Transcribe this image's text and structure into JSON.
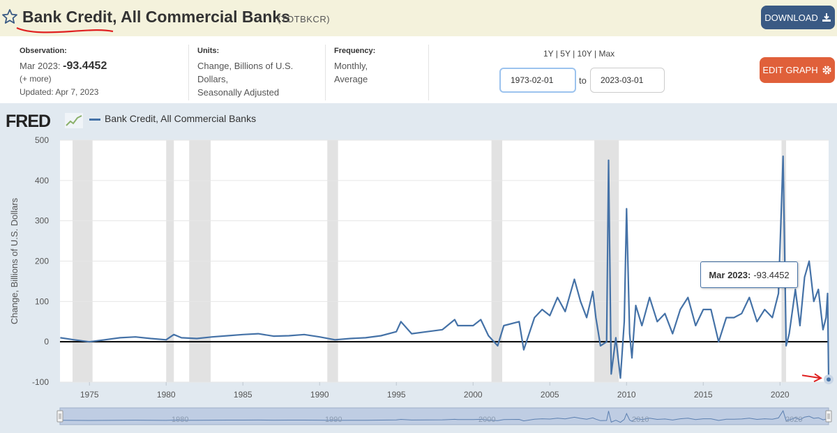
{
  "header": {
    "title": "Bank Credit, All Commercial Banks",
    "series_id": "(TOTBKCR)",
    "download_label": "DOWNLOAD"
  },
  "meta": {
    "observation_label": "Observation:",
    "observation_date": "Mar 2023:",
    "observation_value": "-93.4452",
    "more_link": "(+ more)",
    "updated": "Updated: Apr 7, 2023",
    "units_label": "Units:",
    "units_lines": [
      "Change, Billions of U.S.",
      "Dollars,",
      "Seasonally Adjusted"
    ],
    "frequency_label": "Frequency:",
    "frequency_lines": [
      "Monthly,",
      "Average"
    ]
  },
  "controls": {
    "range_links": [
      "1Y",
      "5Y",
      "10Y",
      "Max"
    ],
    "start_date": "1973-02-01",
    "end_date": "2023-03-01",
    "to_label": "to",
    "edit_label": "EDIT GRAPH"
  },
  "graph": {
    "logo_text": "FRED",
    "legend_label": "Bank Credit, All Commercial Banks",
    "tooltip_date": "Mar 2023:",
    "tooltip_value": "-93.4452",
    "navigator_labels": [
      "1980",
      "1990",
      "2000",
      "2010",
      "2020"
    ]
  },
  "colors": {
    "series": "#4572a7",
    "recession": "#e2e2e2",
    "edit_button": "#e0603a",
    "download_button": "#3a5a84",
    "title_bar": "#f4f2dc"
  },
  "icons": [
    "star-icon",
    "download-icon",
    "gear-icon",
    "fred-sparkline-icon",
    "navigator-handle-icon"
  ],
  "chart_data": {
    "type": "line",
    "title": "",
    "xlabel": "",
    "ylabel": "Change, Billions of U.S. Dollars",
    "ylim": [
      -100,
      500
    ],
    "xlim": [
      1973.08,
      2023.17
    ],
    "yticks": [
      -100,
      0,
      100,
      200,
      300,
      400,
      500
    ],
    "xticks": [
      1975,
      1980,
      1985,
      1990,
      1995,
      2000,
      2005,
      2010,
      2015,
      2020
    ],
    "grid": true,
    "legend_position": "top-left",
    "recessions": [
      [
        1973.9,
        1975.2
      ],
      [
        1980.0,
        1980.5
      ],
      [
        1981.5,
        1982.9
      ],
      [
        1990.5,
        1991.2
      ],
      [
        2001.2,
        2001.9
      ],
      [
        2007.9,
        2009.5
      ],
      [
        2020.1,
        2020.4
      ]
    ],
    "series": [
      {
        "name": "Bank Credit, All Commercial Banks",
        "x": [
          1973.1,
          1974.0,
          1975.0,
          1976.0,
          1977.0,
          1978.0,
          1979.0,
          1980.0,
          1980.5,
          1981.0,
          1982.0,
          1983.0,
          1984.0,
          1985.0,
          1986.0,
          1987.0,
          1988.0,
          1989.0,
          1990.0,
          1991.0,
          1992.0,
          1993.0,
          1994.0,
          1995.0,
          1995.3,
          1996.0,
          1997.0,
          1998.0,
          1998.8,
          1999.0,
          2000.0,
          2000.5,
          2001.0,
          2001.6,
          2002.0,
          2003.0,
          2003.3,
          2004.0,
          2004.5,
          2005.0,
          2005.5,
          2006.0,
          2006.6,
          2007.0,
          2007.4,
          2007.8,
          2008.0,
          2008.3,
          2008.7,
          2008.83,
          2009.0,
          2009.3,
          2009.6,
          2009.85,
          2010.0,
          2010.2,
          2010.35,
          2010.6,
          2011.0,
          2011.5,
          2012.0,
          2012.5,
          2013.0,
          2013.5,
          2014.0,
          2014.5,
          2015.0,
          2015.5,
          2016.0,
          2016.5,
          2017.0,
          2017.5,
          2018.0,
          2018.5,
          2019.0,
          2019.5,
          2019.9,
          2020.2,
          2020.4,
          2020.6,
          2021.0,
          2021.3,
          2021.6,
          2021.9,
          2022.2,
          2022.5,
          2022.8,
          2023.0,
          2023.1,
          2023.17
        ],
        "values": [
          10,
          5,
          0,
          5,
          10,
          12,
          8,
          5,
          18,
          10,
          8,
          12,
          15,
          18,
          20,
          14,
          15,
          18,
          12,
          5,
          8,
          10,
          15,
          25,
          50,
          20,
          25,
          30,
          55,
          40,
          40,
          55,
          15,
          -10,
          40,
          50,
          -20,
          60,
          80,
          65,
          110,
          75,
          155,
          100,
          60,
          125,
          60,
          -10,
          0,
          450,
          -80,
          10,
          -90,
          50,
          330,
          20,
          -40,
          90,
          40,
          110,
          50,
          70,
          20,
          80,
          110,
          40,
          80,
          80,
          0,
          60,
          60,
          70,
          110,
          50,
          80,
          60,
          120,
          460,
          -10,
          20,
          130,
          40,
          160,
          200,
          100,
          130,
          30,
          60,
          120,
          -93.4452
        ]
      }
    ]
  }
}
